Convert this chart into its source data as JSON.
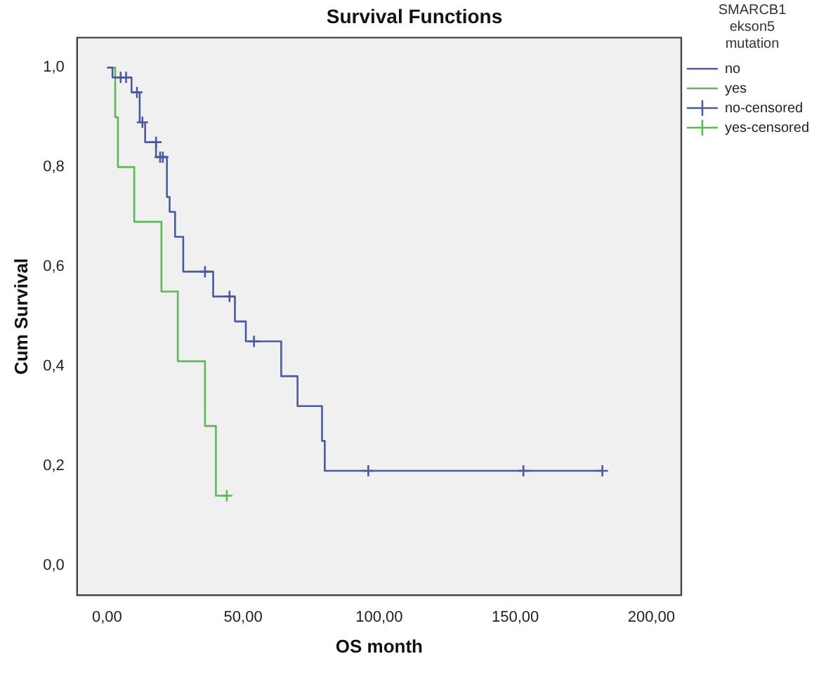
{
  "chart_data": {
    "type": "step",
    "title": "Survival Functions",
    "xlabel": "OS month",
    "ylabel": "Cum Survival",
    "legend_title": "SMARCB1 ekson5 mutation",
    "legend": "right",
    "xlim": [
      -11,
      211
    ],
    "ylim": [
      -0.06,
      1.06
    ],
    "xticks": [
      {
        "value": 0,
        "label": "0,00"
      },
      {
        "value": 50,
        "label": "50,00"
      },
      {
        "value": 100,
        "label": "100,00"
      },
      {
        "value": 150,
        "label": "150,00"
      },
      {
        "value": 200,
        "label": "200,00"
      }
    ],
    "yticks": [
      {
        "value": 0,
        "label": "0,0"
      },
      {
        "value": 0.2,
        "label": "0,2"
      },
      {
        "value": 0.4,
        "label": "0,4"
      },
      {
        "value": 0.6,
        "label": "0,6"
      },
      {
        "value": 0.8,
        "label": "0,8"
      },
      {
        "value": 1,
        "label": "1,0"
      }
    ],
    "series": [
      {
        "name": "no",
        "color": "#4a5a9c",
        "marker": "none",
        "x": [
          0,
          2,
          9,
          12,
          14,
          18,
          22,
          23,
          25,
          28,
          39,
          47,
          51,
          64,
          70,
          79,
          80,
          182
        ],
        "values": [
          1,
          0.98,
          0.95,
          0.89,
          0.85,
          0.82,
          0.74,
          0.71,
          0.66,
          0.59,
          0.54,
          0.49,
          0.45,
          0.38,
          0.32,
          0.25,
          0.19,
          0.19
        ]
      },
      {
        "name": "yes",
        "color": "#5fb55a",
        "marker": "none",
        "x": [
          0,
          3,
          4,
          10,
          20,
          26,
          36,
          40,
          44
        ],
        "values": [
          1,
          0.9,
          0.8,
          0.69,
          0.55,
          0.41,
          0.28,
          0.14,
          0.14
        ]
      },
      {
        "name": "no-censored",
        "type": "scatter",
        "color": "#4a5a9c",
        "marker": "cross",
        "x": [
          5,
          7,
          11,
          13,
          18,
          19.5,
          20.5,
          36,
          45,
          54,
          96,
          153,
          182
        ],
        "values": [
          0.98,
          0.98,
          0.95,
          0.89,
          0.85,
          0.82,
          0.82,
          0.59,
          0.54,
          0.45,
          0.19,
          0.19,
          0.19
        ]
      },
      {
        "name": "yes-censored",
        "type": "scatter",
        "color": "#5fb55a",
        "marker": "cross",
        "x": [
          44
        ],
        "values": [
          0.14
        ]
      }
    ]
  }
}
